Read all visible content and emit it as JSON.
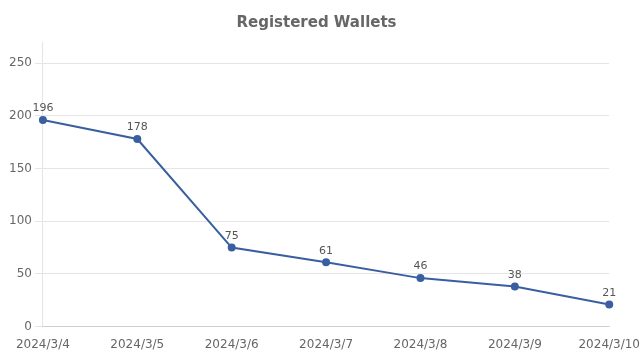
{
  "chart_data": {
    "type": "line",
    "title": "Registered Wallets",
    "categories": [
      "2024/3/4",
      "2024/3/5",
      "2024/3/6",
      "2024/3/7",
      "2024/3/8",
      "2024/3/9",
      "2024/3/10"
    ],
    "values": [
      196,
      178,
      75,
      61,
      46,
      38,
      21
    ],
    "color": "#3a5fa0",
    "marker": "circle",
    "ylim": [
      0,
      270
    ],
    "yticks": [
      0,
      50,
      100,
      150,
      200,
      250
    ],
    "grid": true,
    "data_labels": true
  }
}
